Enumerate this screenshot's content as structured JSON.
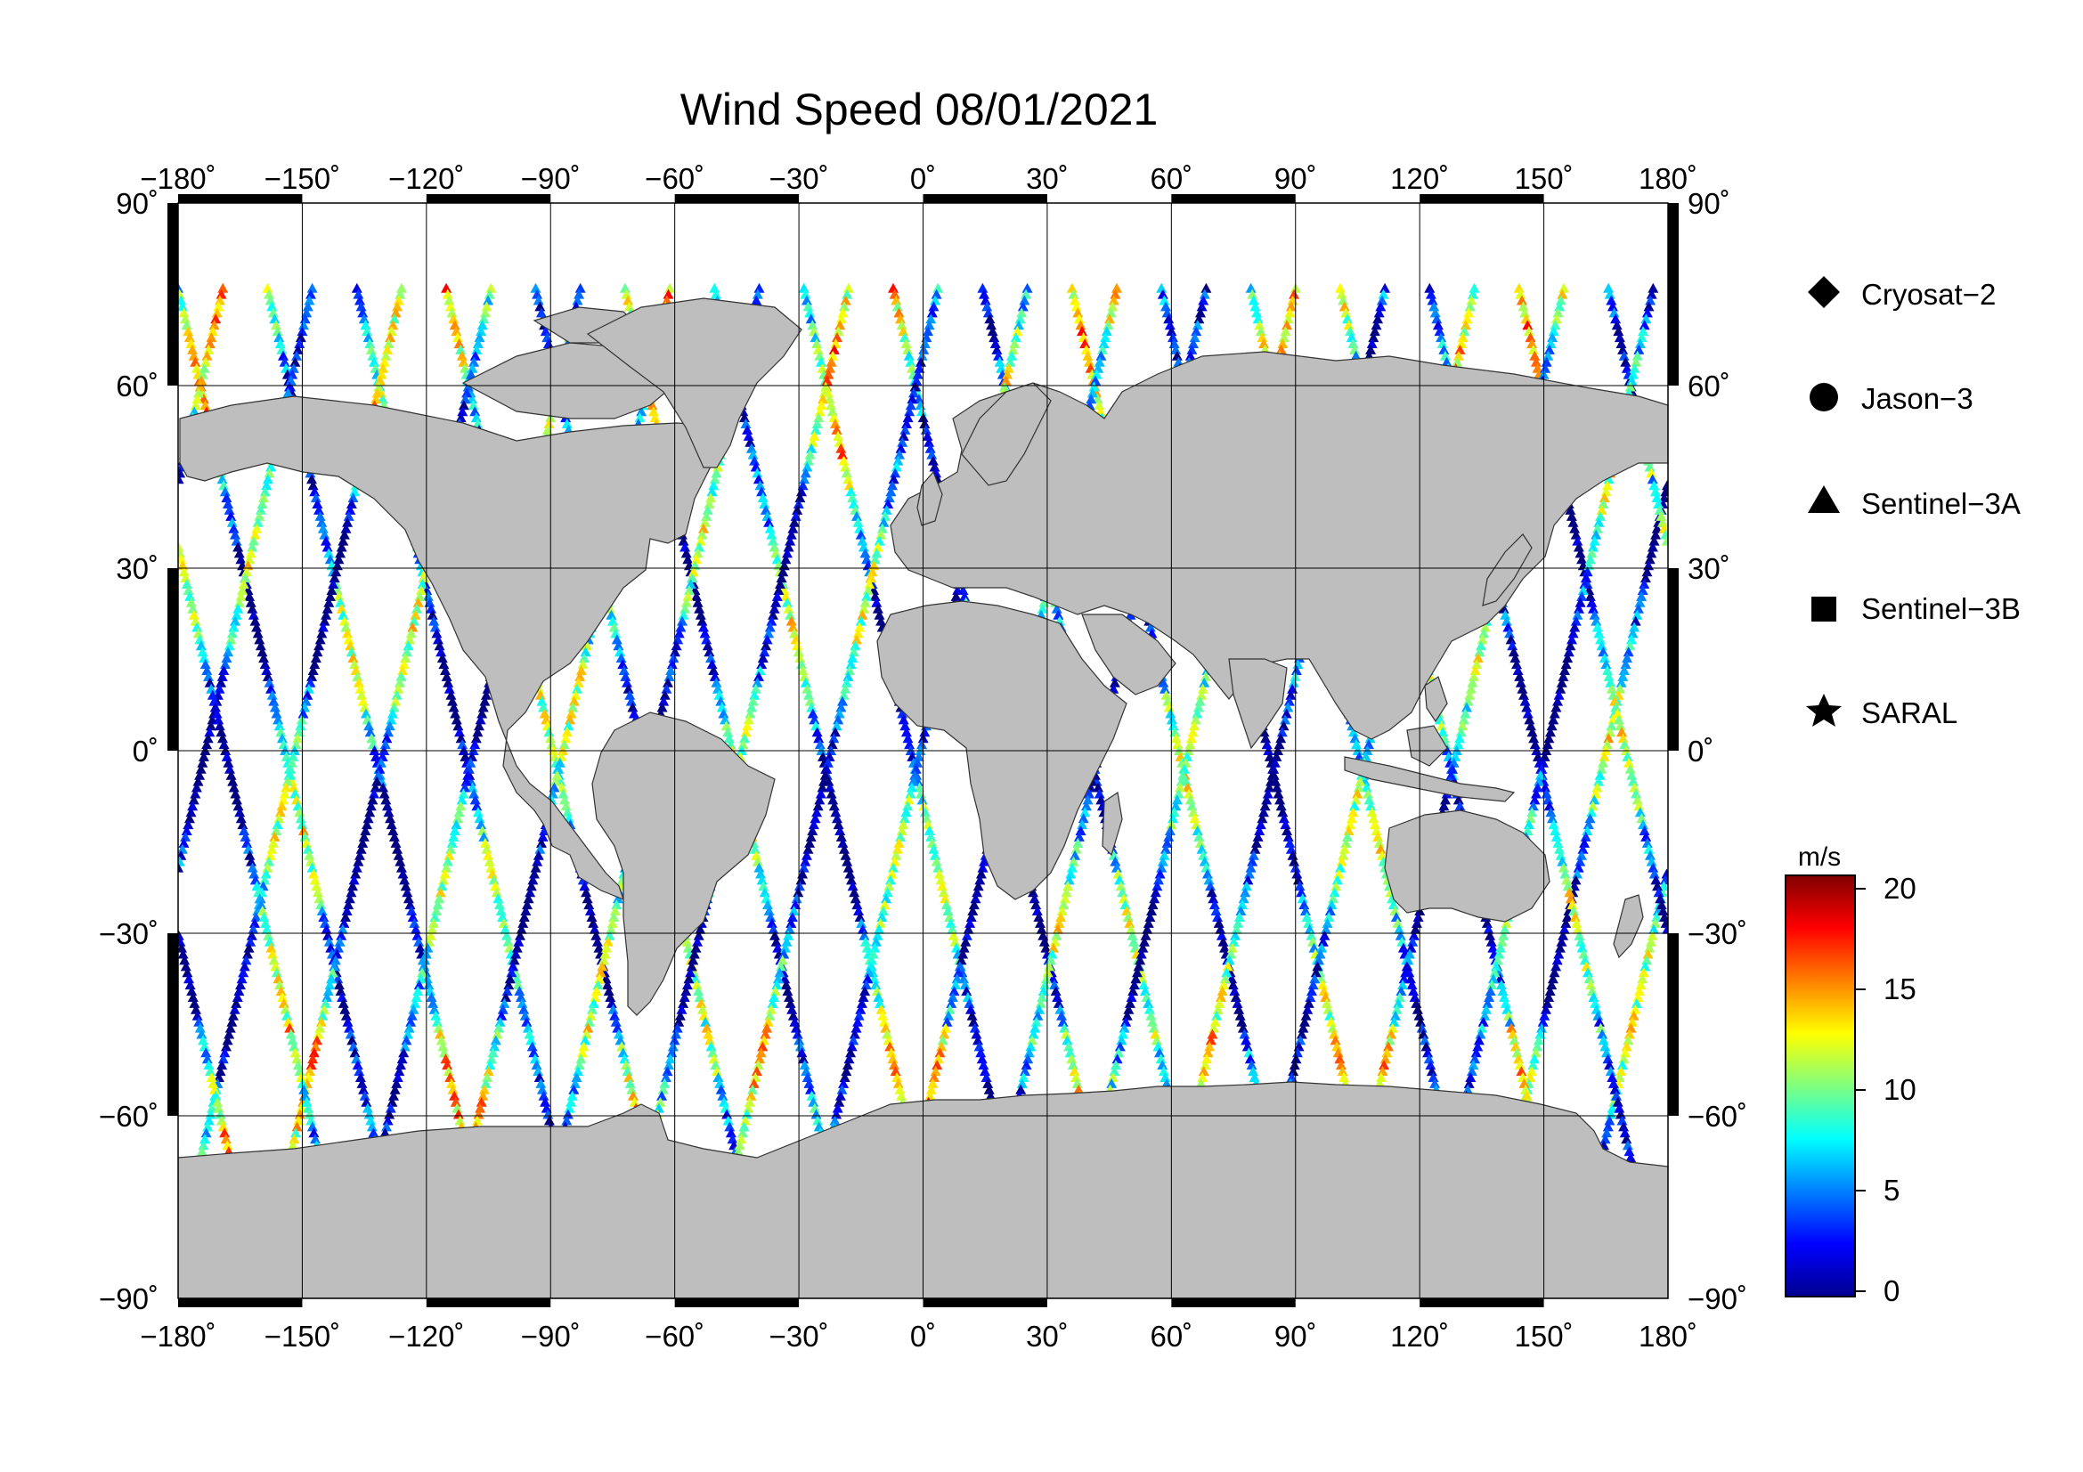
{
  "title": "Wind Speed 08/01/2021",
  "lon_ticks": [
    "−180˚",
    "−150˚",
    "−120˚",
    "−90˚",
    "−60˚",
    "−30˚",
    "0˚",
    "30˚",
    "60˚",
    "90˚",
    "120˚",
    "150˚",
    "180˚"
  ],
  "lat_ticks": [
    "90˚",
    "60˚",
    "30˚",
    "0˚",
    "−30˚",
    "−60˚",
    "−90˚"
  ],
  "legend": [
    {
      "label": "Cryosat−2",
      "marker": "diamond"
    },
    {
      "label": "Jason−3",
      "marker": "circle"
    },
    {
      "label": "Sentinel−3A",
      "marker": "triangle"
    },
    {
      "label": "Sentinel−3B",
      "marker": "square"
    },
    {
      "label": "SARAL",
      "marker": "star"
    }
  ],
  "colorbar": {
    "unit": "m/s",
    "ticks": [
      "20",
      "15",
      "10",
      "5",
      "0"
    ],
    "range": [
      0,
      20
    ],
    "colormap": "jet"
  },
  "colors": {
    "land": "#bebebe",
    "ocean": "#ffffff",
    "frame": "#000000"
  }
}
